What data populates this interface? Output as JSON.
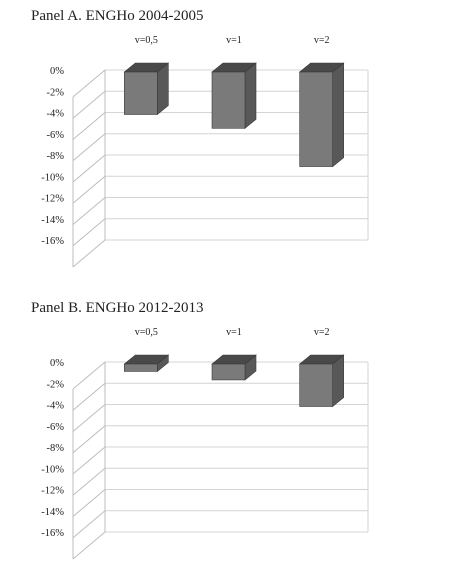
{
  "panels": [
    {
      "title": "Panel A. ENGHo 2004-2005",
      "chart_data": {
        "type": "bar",
        "categories": [
          "v=0,5",
          "v=1",
          "v=2"
        ],
        "values": [
          -4.0,
          -5.3,
          -8.9
        ],
        "ylim": [
          -16,
          0
        ],
        "yticks": [
          "0%",
          "-2%",
          "-4%",
          "-6%",
          "-8%",
          "-10%",
          "-12%",
          "-14%",
          "-16%"
        ],
        "grid": true,
        "style": "3d",
        "bar_color": "#7a7a7a"
      }
    },
    {
      "title": "Panel B. ENGHo 2012-2013",
      "chart_data": {
        "type": "bar",
        "categories": [
          "v=0,5",
          "v=1",
          "v=2"
        ],
        "values": [
          -0.7,
          -1.5,
          -4.0
        ],
        "ylim": [
          -16,
          0
        ],
        "yticks": [
          "0%",
          "-2%",
          "-4%",
          "-6%",
          "-8%",
          "-10%",
          "-12%",
          "-14%",
          "-16%"
        ],
        "grid": true,
        "style": "3d",
        "bar_color": "#7a7a7a"
      }
    }
  ]
}
